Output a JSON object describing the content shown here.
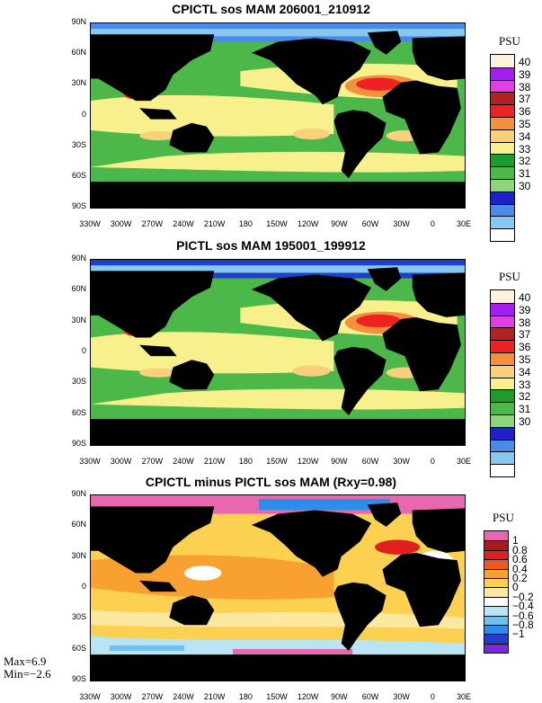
{
  "panels": [
    {
      "title": "CPICTL sos MAM 206001_210912",
      "legend_title": "PSU",
      "legend_labels": [
        "40",
        "39",
        "38",
        "37",
        "36",
        "35",
        "34",
        "33",
        "32",
        "31",
        "30"
      ],
      "legend_colors": [
        "#fff2dc",
        "#a020f0",
        "#e040e0",
        "#b22222",
        "#ee2222",
        "#f4913c",
        "#fbd07a",
        "#f7f08c",
        "#1e9b2f",
        "#4cb84a",
        "#8ed47a",
        "#2020c8",
        "#4a8ae8",
        "#86c8f0",
        "#ffffff"
      ],
      "type": "mean"
    },
    {
      "title": "PICTL sos MAM 195001_199912",
      "legend_title": "PSU",
      "legend_labels": [
        "40",
        "39",
        "38",
        "37",
        "36",
        "35",
        "34",
        "33",
        "32",
        "31",
        "30"
      ],
      "legend_colors": [
        "#fff2dc",
        "#a020f0",
        "#e040e0",
        "#b22222",
        "#ee2222",
        "#f4913c",
        "#fbd07a",
        "#f7f08c",
        "#1e9b2f",
        "#4cb84a",
        "#8ed47a",
        "#2020c8",
        "#4a8ae8",
        "#86c8f0",
        "#ffffff"
      ],
      "type": "mean"
    },
    {
      "title": "CPICTL minus PICTL sos MAM (Rxy=0.98)",
      "legend_title": "PSU",
      "legend_labels": [
        "1",
        "0.8",
        "0.6",
        "0.4",
        "0.2",
        "0",
        "−0.2",
        "−0.4",
        "−0.6",
        "−0.8",
        "−1"
      ],
      "legend_colors": [
        "#e868b0",
        "#a51c1c",
        "#e02020",
        "#f05828",
        "#f8a030",
        "#fcd050",
        "#fde8a0",
        "#ffffff",
        "#b8e4f4",
        "#70c0f0",
        "#2c8ee8",
        "#2040c8",
        "#7a2ad8"
      ],
      "type": "diff"
    }
  ],
  "lat_labels": [
    "90N",
    "60N",
    "30N",
    "0",
    "30S",
    "60S",
    "90S"
  ],
  "lon_labels": [
    "330W",
    "300W",
    "270W",
    "240W",
    "210W",
    "180",
    "150W",
    "120W",
    "90W",
    "60W",
    "30W",
    "0",
    "30E"
  ],
  "stats": {
    "max": "Max=6.9",
    "min": "Min=−2.6"
  }
}
